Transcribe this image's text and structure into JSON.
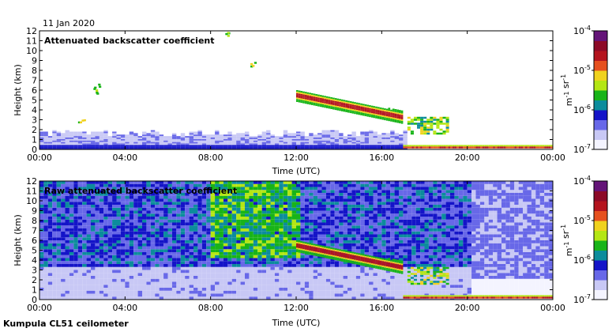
{
  "date_label": "11 Jan 2020",
  "footer": "Kumpula CL51 ceilometer",
  "colors": {
    "colormap": [
      "#f4f4ff",
      "#c8c8f5",
      "#6868e8",
      "#1414c8",
      "#0c8c9c",
      "#18b418",
      "#b4e614",
      "#f0d21e",
      "#e6501e",
      "#b4141e",
      "#8c0a28",
      "#641478"
    ]
  },
  "chart_data": [
    {
      "type": "heatmap",
      "title": "Attenuated backscatter coefficient",
      "xlabel": "Time (UTC)",
      "ylabel": "Height (km)",
      "x_ticks": [
        "00:00",
        "04:00",
        "08:00",
        "12:00",
        "16:00",
        "20:00",
        "00:00"
      ],
      "xlim_hours": [
        0,
        24
      ],
      "y_ticks": [
        "0",
        "1",
        "2",
        "3",
        "4",
        "5",
        "6",
        "7",
        "8",
        "9",
        "10",
        "11",
        "12"
      ],
      "ylim_km": [
        0,
        12
      ],
      "colorbar": {
        "scale": "log",
        "range": [
          1e-07,
          0.0001
        ],
        "ticks": [
          "10-7",
          "10-6",
          "10-5",
          "10-4"
        ],
        "unit": "m-1 sr-1"
      },
      "features": [
        {
          "name": "boundary layer",
          "hours": [
            0,
            17
          ],
          "height_km": [
            0,
            1.8
          ]
        },
        {
          "name": "cloud layer",
          "hours": [
            12,
            17
          ],
          "height_km": [
            3,
            6
          ]
        },
        {
          "name": "low cloud",
          "hours": [
            17,
            24
          ],
          "height_km": [
            0,
            0.5
          ]
        }
      ]
    },
    {
      "type": "heatmap",
      "title": "Raw attenuated backscatter coefficient",
      "xlabel": "Time (UTC)",
      "ylabel": "Height (km)",
      "x_ticks": [
        "00:00",
        "04:00",
        "08:00",
        "12:00",
        "16:00",
        "20:00",
        "00:00"
      ],
      "xlim_hours": [
        0,
        24
      ],
      "y_ticks": [
        "0",
        "1",
        "2",
        "3",
        "4",
        "5",
        "6",
        "7",
        "8",
        "9",
        "10",
        "11",
        "12"
      ],
      "ylim_km": [
        0,
        12
      ],
      "colorbar": {
        "scale": "log",
        "range": [
          1e-07,
          0.0001
        ],
        "ticks": [
          "10-7",
          "10-6",
          "10-5",
          "10-4"
        ],
        "unit": "m-1 sr-1"
      },
      "features": [
        {
          "name": "noise background",
          "hours": [
            0,
            24
          ],
          "height_km": [
            0,
            12
          ]
        },
        {
          "name": "cloud layer",
          "hours": [
            12,
            17
          ],
          "height_km": [
            3,
            6
          ]
        },
        {
          "name": "low cloud",
          "hours": [
            17,
            24
          ],
          "height_km": [
            0,
            0.5
          ]
        }
      ]
    }
  ]
}
